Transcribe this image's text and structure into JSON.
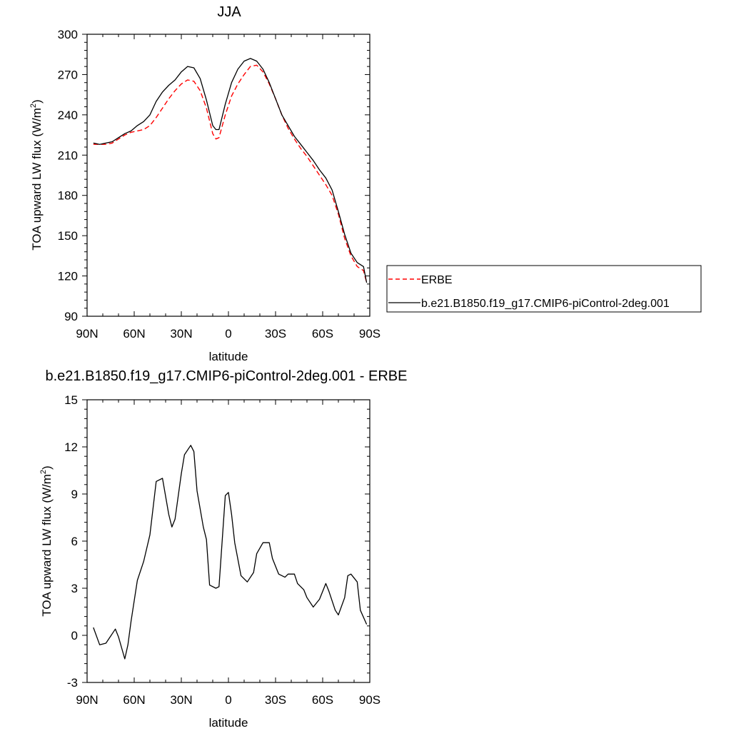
{
  "colors": {
    "erbe": "#ff0000",
    "model": "#000000",
    "axis": "#000000",
    "background": "#ffffff"
  },
  "chart_data": [
    {
      "type": "line",
      "title": "JJA",
      "xlabel": "latitude",
      "ylabel": "TOA upward LW flux (W/m",
      "ylabel_sup": "2",
      "ylabel_close": ")",
      "xlim": [
        90,
        -90
      ],
      "ylim": [
        90,
        300
      ],
      "xticks": [
        90,
        60,
        30,
        0,
        -30,
        -60,
        -90
      ],
      "xtick_labels": [
        "90N",
        "60N",
        "30N",
        "0",
        "30S",
        "60S",
        "90S"
      ],
      "yticks": [
        90,
        120,
        150,
        180,
        210,
        240,
        270,
        300
      ],
      "ytick_labels": [
        "90",
        "120",
        "150",
        "180",
        "210",
        "240",
        "270",
        "300"
      ],
      "grid": false,
      "legend_position": "right",
      "series": [
        {
          "name": "ERBE",
          "style": "dashed",
          "color": "#ff0000",
          "x": [
            86,
            82,
            78,
            74,
            70,
            66,
            62,
            58,
            54,
            50,
            46,
            42,
            38,
            34,
            30,
            26,
            22,
            18,
            14,
            10,
            8,
            6,
            2,
            -2,
            -6,
            -10,
            -14,
            -18,
            -22,
            -26,
            -30,
            -34,
            -38,
            -42,
            -46,
            -50,
            -54,
            -58,
            -62,
            -66,
            -70,
            -74,
            -78,
            -82,
            -86,
            -88
          ],
          "y": [
            218,
            218,
            218,
            219,
            222,
            225,
            227,
            228,
            229,
            232,
            238,
            245,
            252,
            258,
            263,
            266,
            265,
            258,
            245,
            226,
            222,
            223,
            240,
            254,
            263,
            270,
            276,
            277,
            272,
            263,
            252,
            240,
            230,
            222,
            215,
            209,
            202,
            195,
            188,
            180,
            166,
            148,
            135,
            127,
            124,
            115
          ]
        },
        {
          "name": "b.e21.B1850.f19_g17.CMIP6-piControl-2deg.001",
          "style": "solid",
          "color": "#000000",
          "x": [
            86,
            82,
            78,
            74,
            70,
            66,
            62,
            58,
            54,
            50,
            46,
            42,
            38,
            34,
            30,
            26,
            22,
            18,
            14,
            10,
            8,
            6,
            2,
            -2,
            -6,
            -10,
            -14,
            -18,
            -22,
            -26,
            -30,
            -34,
            -38,
            -42,
            -46,
            -50,
            -54,
            -58,
            -62,
            -66,
            -70,
            -74,
            -78,
            -82,
            -86,
            -88
          ],
          "y": [
            219,
            218,
            219,
            220,
            223,
            226,
            228,
            232,
            235,
            240,
            250,
            257,
            262,
            266,
            272,
            276,
            275,
            267,
            251,
            232,
            229,
            229,
            248,
            264,
            274,
            280,
            282,
            280,
            274,
            264,
            252,
            240,
            232,
            224,
            218,
            212,
            206,
            199,
            193,
            184,
            168,
            151,
            137,
            130,
            127,
            115
          ]
        }
      ]
    },
    {
      "type": "line",
      "title": "b.e21.B1850.f19_g17.CMIP6-piControl-2deg.001 - ERBE",
      "xlabel": "latitude",
      "ylabel": "TOA upward LW flux (W/m",
      "ylabel_sup": "2",
      "ylabel_close": ")",
      "xlim": [
        90,
        -90
      ],
      "ylim": [
        -3,
        15
      ],
      "xticks": [
        90,
        60,
        30,
        0,
        -30,
        -60,
        -90
      ],
      "xtick_labels": [
        "90N",
        "60N",
        "30N",
        "0",
        "30S",
        "60S",
        "90S"
      ],
      "yticks": [
        -3,
        0,
        3,
        6,
        9,
        12,
        15
      ],
      "ytick_labels": [
        "-3",
        "0",
        "3",
        "6",
        "9",
        "12",
        "15"
      ],
      "grid": false,
      "series": [
        {
          "style": "solid",
          "color": "#000000",
          "x": [
            86,
            82,
            78,
            74,
            72,
            70,
            66,
            64,
            62,
            58,
            54,
            50,
            46,
            42,
            38,
            36,
            34,
            30,
            28,
            24,
            22,
            20,
            16,
            14,
            12,
            8,
            6,
            2,
            0,
            -2,
            -4,
            -8,
            -12,
            -16,
            -18,
            -22,
            -26,
            -28,
            -32,
            -36,
            -38,
            -42,
            -44,
            -48,
            -50,
            -54,
            -58,
            -62,
            -64,
            -68,
            -70,
            -74,
            -76,
            -78,
            -82,
            -84,
            -88
          ],
          "y": [
            0.5,
            -0.6,
            -0.5,
            0.1,
            0.4,
            -0.1,
            -1.5,
            -0.6,
            0.9,
            3.5,
            4.7,
            6.4,
            9.8,
            10.0,
            7.7,
            6.9,
            7.4,
            10.3,
            11.5,
            12.1,
            11.7,
            9.2,
            6.9,
            6.1,
            3.2,
            3.0,
            3.1,
            8.9,
            9.1,
            7.7,
            5.9,
            3.8,
            3.4,
            4.0,
            5.2,
            5.9,
            5.9,
            4.9,
            3.9,
            3.7,
            3.9,
            3.9,
            3.3,
            2.9,
            2.4,
            1.8,
            2.3,
            3.3,
            2.8,
            1.6,
            1.3,
            2.4,
            3.8,
            3.9,
            3.4,
            1.6,
            0.7
          ]
        }
      ]
    }
  ]
}
